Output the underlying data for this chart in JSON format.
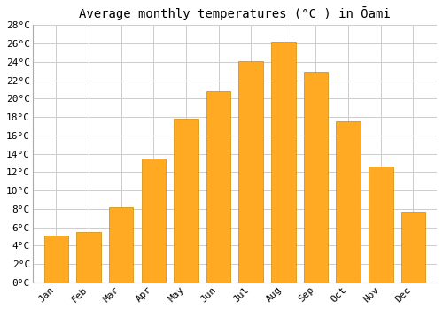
{
  "title": "Average monthly temperatures (°C ) in Ōami",
  "months": [
    "Jan",
    "Feb",
    "Mar",
    "Apr",
    "May",
    "Jun",
    "Jul",
    "Aug",
    "Sep",
    "Oct",
    "Nov",
    "Dec"
  ],
  "temperatures": [
    5.1,
    5.5,
    8.2,
    13.5,
    17.8,
    20.8,
    24.1,
    26.2,
    22.9,
    17.5,
    12.6,
    7.7
  ],
  "bar_color_top": "#FFCC44",
  "bar_color_bottom": "#FFAA00",
  "bar_edge_color": "#CC8800",
  "ylim": [
    0,
    28
  ],
  "yticks": [
    0,
    2,
    4,
    6,
    8,
    10,
    12,
    14,
    16,
    18,
    20,
    22,
    24,
    26,
    28
  ],
  "ytick_labels": [
    "0°C",
    "2°C",
    "4°C",
    "6°C",
    "8°C",
    "10°C",
    "12°C",
    "14°C",
    "16°C",
    "18°C",
    "20°C",
    "22°C",
    "24°C",
    "26°C",
    "28°C"
  ],
  "grid_color": "#cccccc",
  "background_color": "#ffffff",
  "title_fontsize": 10,
  "tick_fontsize": 8,
  "bar_width": 0.75
}
